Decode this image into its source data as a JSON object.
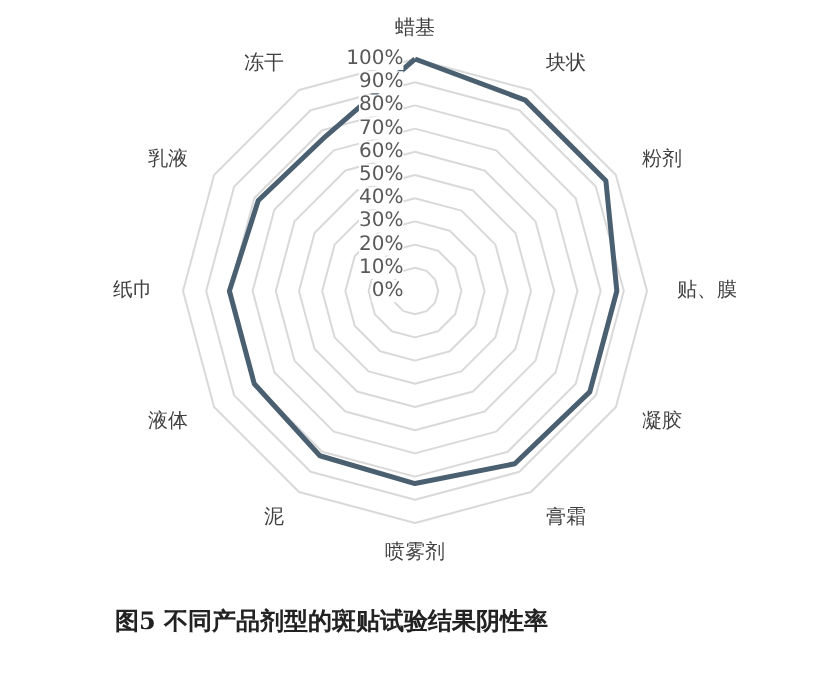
{
  "chart_data": {
    "type": "radar",
    "categories": [
      "蜡基",
      "块状",
      "粉剂",
      "贴、膜",
      "凝胶",
      "膏霜",
      "喷雾剂",
      "泥",
      "液体",
      "纸巾",
      "乳液",
      "冻干"
    ],
    "series": [
      {
        "color": "#4a5f70",
        "values": [
          100,
          95,
          95,
          87,
          87,
          86,
          83,
          82,
          80,
          80,
          78,
          77
        ]
      }
    ],
    "ylim": [
      0,
      100
    ],
    "yticks": [
      {
        "value": 0,
        "label": "0%"
      },
      {
        "value": 10,
        "label": "10%"
      },
      {
        "value": 20,
        "label": "20%"
      },
      {
        "value": 30,
        "label": "30%"
      },
      {
        "value": 40,
        "label": "40%"
      },
      {
        "value": 50,
        "label": "50%"
      },
      {
        "value": 60,
        "label": "60%"
      },
      {
        "value": 70,
        "label": "70%"
      },
      {
        "value": 80,
        "label": "80%"
      },
      {
        "value": 90,
        "label": "90%"
      },
      {
        "value": 100,
        "label": "100%"
      }
    ],
    "grid": true,
    "marker": "none",
    "line_style": "solid",
    "annotations": [
      "图5    不同产品剂型的斑贴试验结果阴性率"
    ]
  }
}
